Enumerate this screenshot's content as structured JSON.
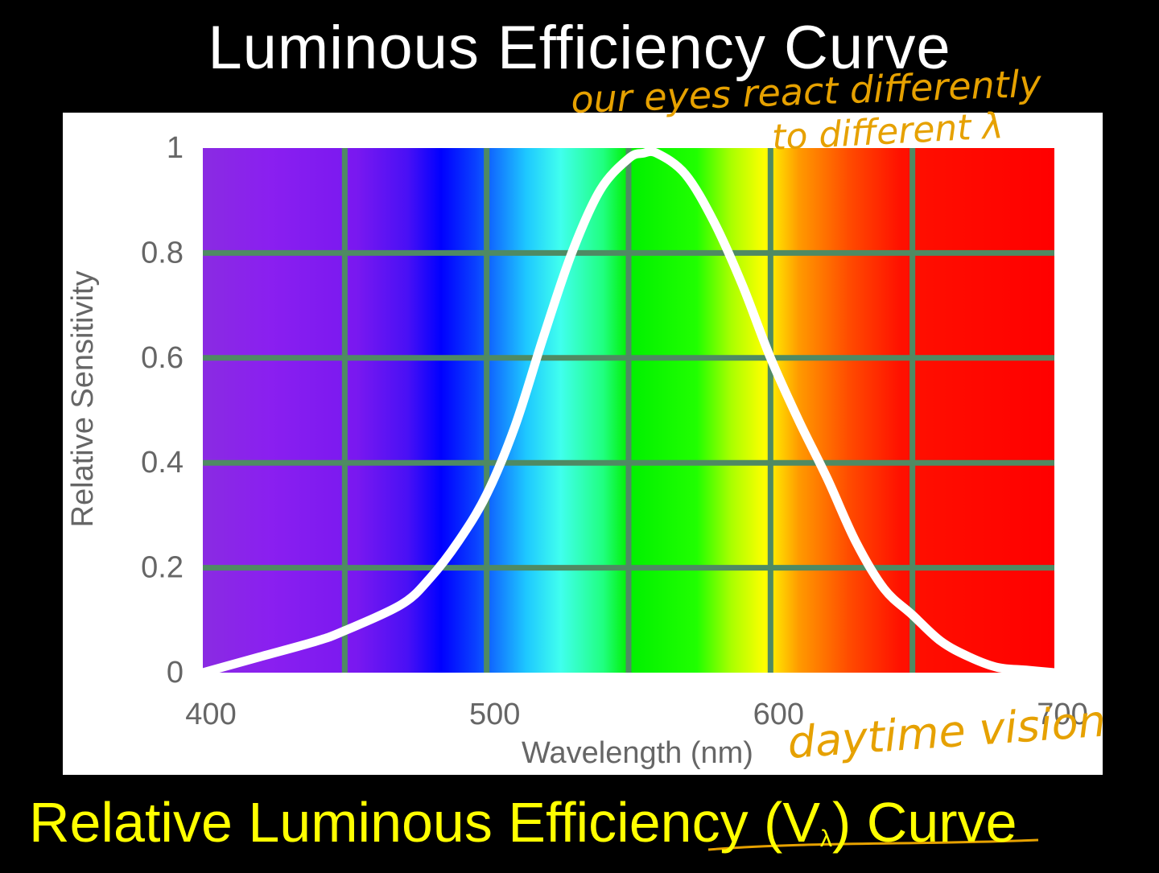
{
  "title": "Luminous Efficiency Curve",
  "subtitle": {
    "text_before": "Relative Luminous Efficiency (V",
    "subscript": "λ",
    "text_after": ") Curve"
  },
  "annotations": {
    "top_line1": "our eyes react differently",
    "top_line2": "to different λ",
    "bottom": "daytime vision"
  },
  "colors": {
    "title": "#ffffff",
    "subtitle": "#ffff00",
    "annotation": "#e6a100",
    "curve": "#ffffff",
    "grid": "#4f8a63",
    "axis_text": "#666666"
  },
  "chart_data": {
    "type": "line",
    "title": "",
    "xlabel": "Wavelength (nm)",
    "ylabel": "Relative Sensitivity",
    "xlim": [
      400,
      700
    ],
    "ylim": [
      0,
      1
    ],
    "x_ticks": [
      400,
      500,
      600,
      700
    ],
    "y_ticks": [
      0,
      0.2,
      0.4,
      0.6,
      0.8,
      1
    ],
    "y_tick_labels": [
      "0",
      "0.2",
      "0.4",
      "0.6",
      "0.8",
      "1"
    ],
    "grid": true,
    "background": "visible spectrum gradient",
    "series": [
      {
        "x": [
          400,
          420,
          440,
          450,
          470,
          480,
          490,
          500,
          510,
          520,
          530,
          540,
          550,
          555,
          560,
          570,
          580,
          590,
          600,
          610,
          620,
          630,
          640,
          650,
          660,
          670,
          680,
          690,
          700
        ],
        "y": [
          0.0,
          0.03,
          0.06,
          0.08,
          0.13,
          0.18,
          0.25,
          0.34,
          0.47,
          0.64,
          0.8,
          0.92,
          0.98,
          0.99,
          0.99,
          0.95,
          0.86,
          0.74,
          0.6,
          0.48,
          0.37,
          0.25,
          0.16,
          0.11,
          0.06,
          0.03,
          0.01,
          0.005,
          0.0
        ]
      }
    ]
  }
}
